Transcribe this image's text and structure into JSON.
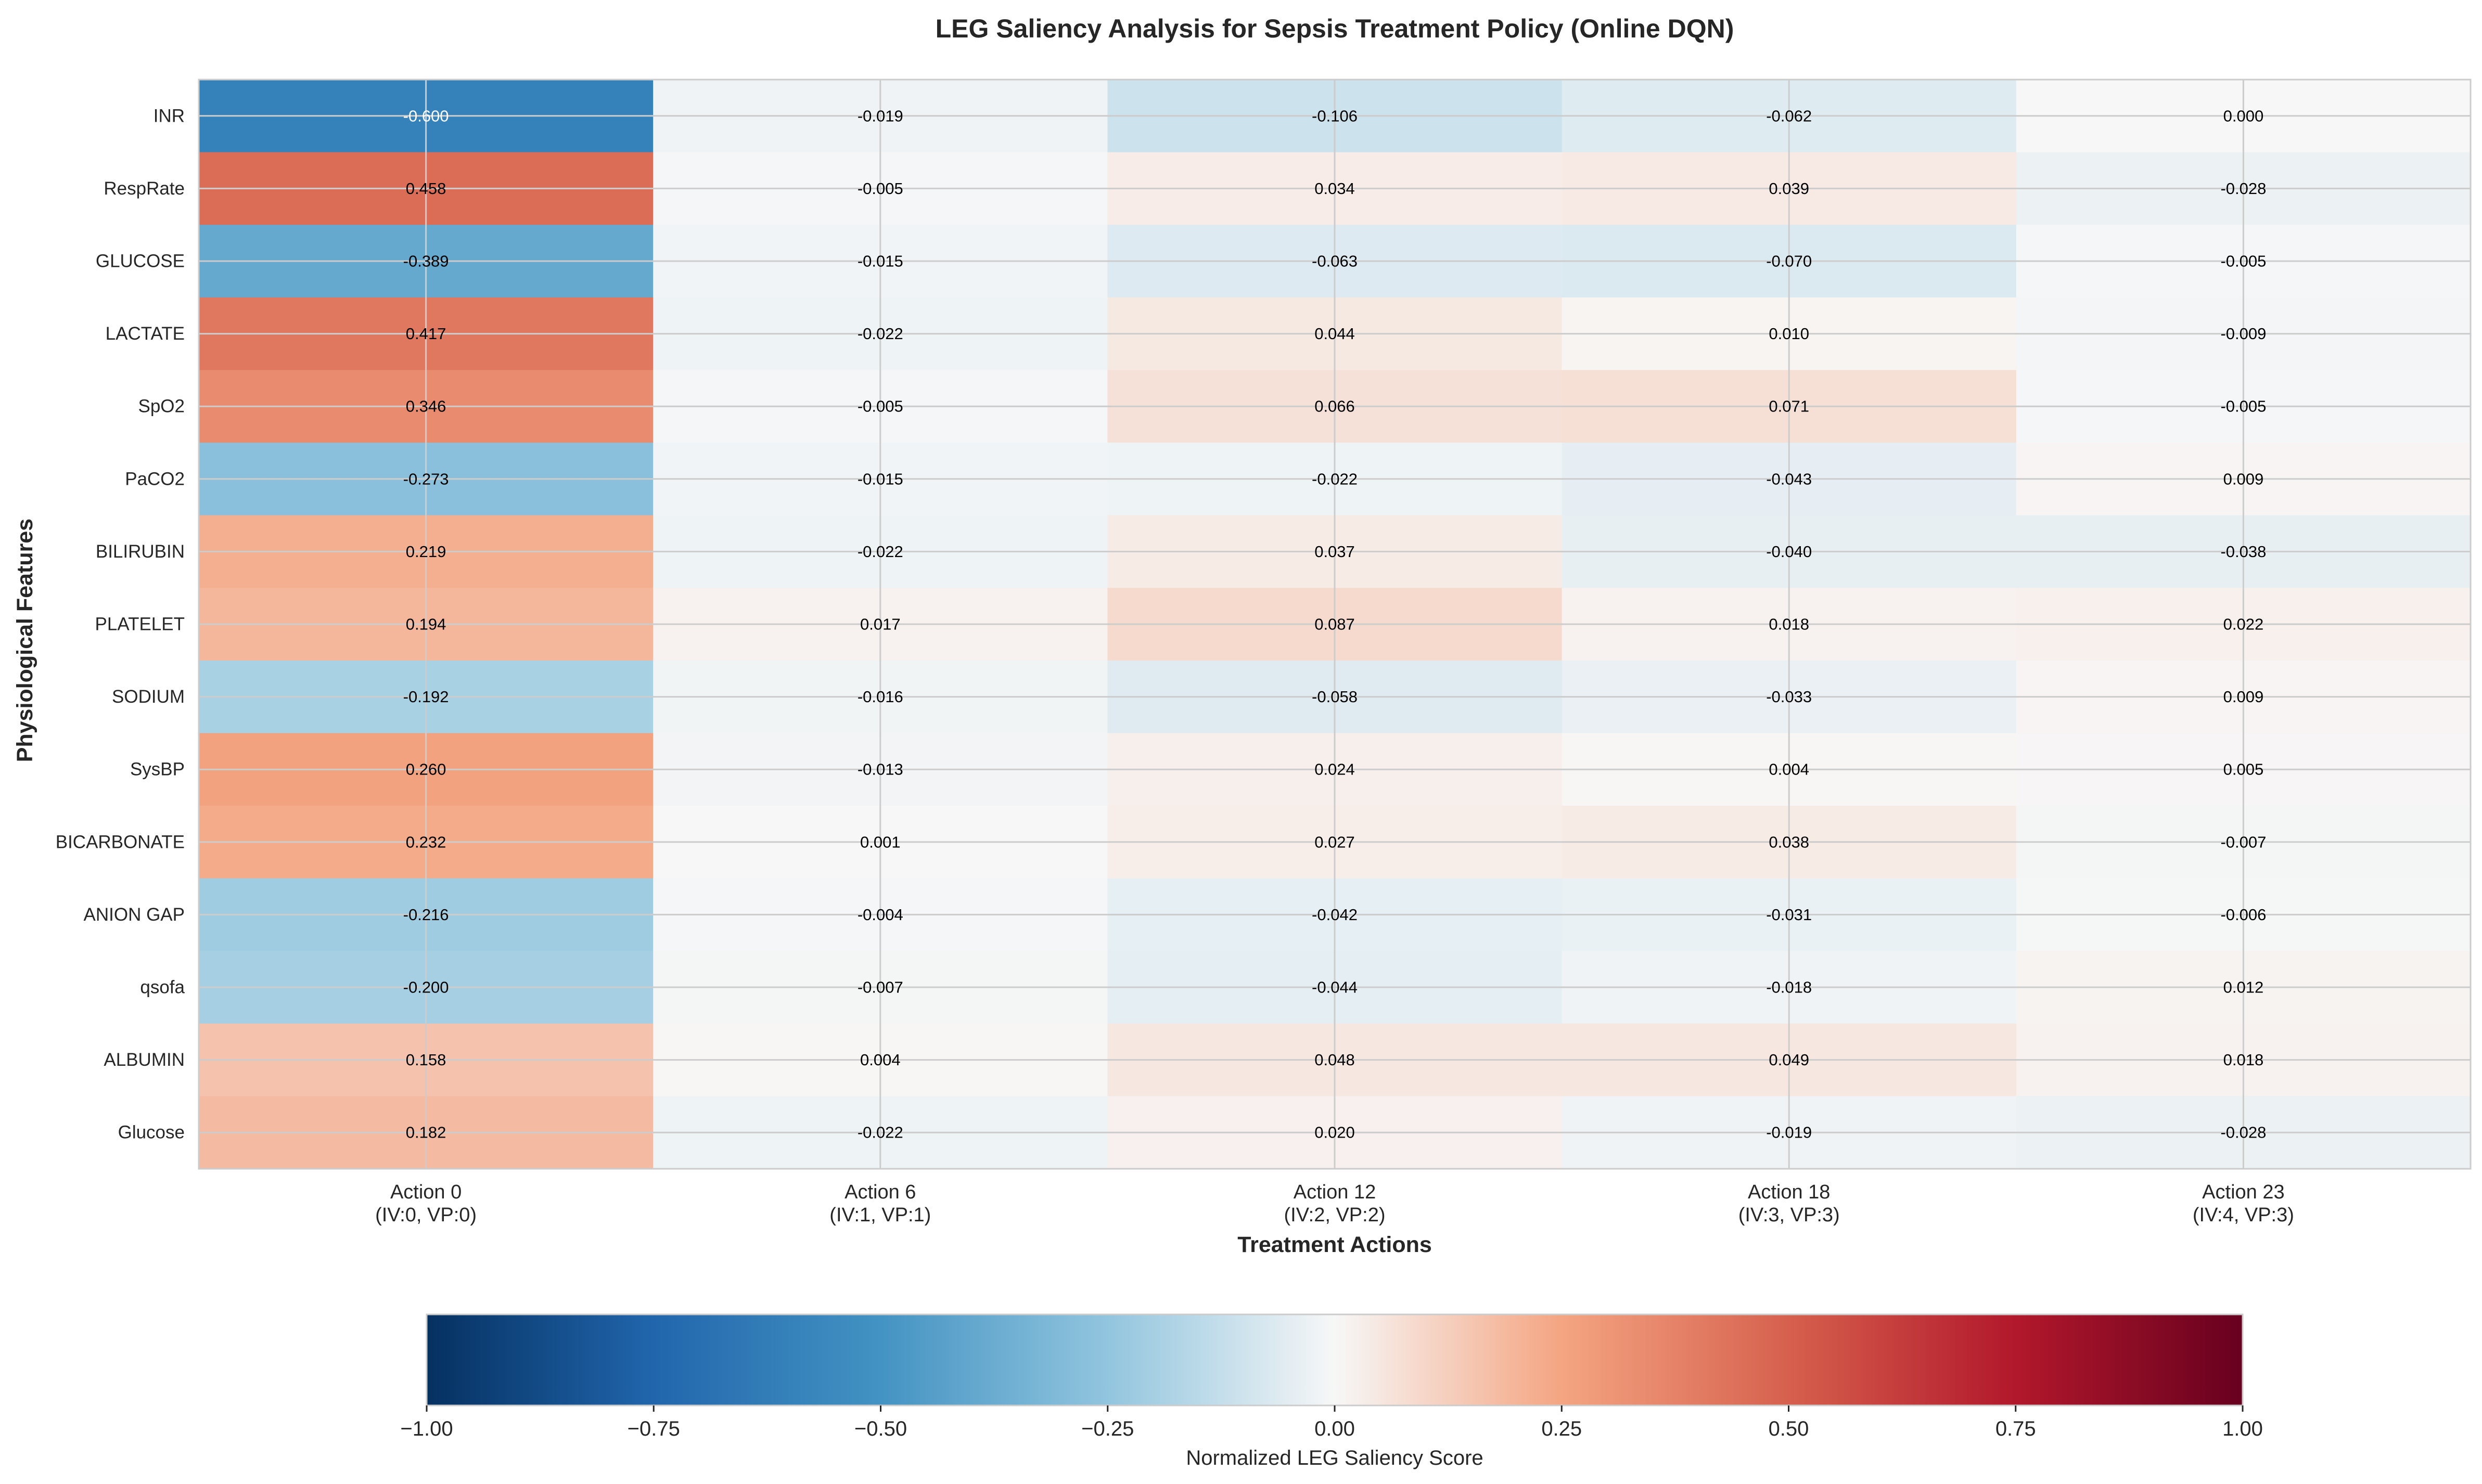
{
  "chart_data": {
    "type": "heatmap",
    "title": "LEG Saliency Analysis for Sepsis Treatment Policy (Online DQN)",
    "xlabel": "Treatment Actions",
    "ylabel": "Physiological Features",
    "colorbar_label": "Normalized LEG Saliency Score",
    "colormap": "RdBu_r",
    "vmin": -1.0,
    "vmax": 1.0,
    "colorbar_ticks": [
      "−1.00",
      "−0.75",
      "−0.50",
      "−0.25",
      "0.00",
      "0.25",
      "0.50",
      "0.75",
      "1.00"
    ],
    "colorbar_tick_values": [
      -1.0,
      -0.75,
      -0.5,
      -0.25,
      0.0,
      0.25,
      0.5,
      0.75,
      1.0
    ],
    "grid": true,
    "columns": [
      {
        "line1": "Action 0",
        "line2": "(IV:0, VP:0)"
      },
      {
        "line1": "Action 6",
        "line2": "(IV:1, VP:1)"
      },
      {
        "line1": "Action 12",
        "line2": "(IV:2, VP:2)"
      },
      {
        "line1": "Action 18",
        "line2": "(IV:3, VP:3)"
      },
      {
        "line1": "Action 23",
        "line2": "(IV:4, VP:3)"
      }
    ],
    "rows": [
      "INR",
      "RespRate",
      "GLUCOSE",
      "LACTATE",
      "SpO2",
      "PaCO2",
      "BILIRUBIN",
      "PLATELET",
      "SODIUM",
      "SysBP",
      "BICARBONATE",
      "ANION GAP",
      "qsofa",
      "ALBUMIN",
      "Glucose"
    ],
    "values": [
      [
        -0.6,
        -0.019,
        -0.106,
        -0.062,
        0.0
      ],
      [
        0.458,
        -0.005,
        0.034,
        0.039,
        -0.028
      ],
      [
        -0.389,
        -0.015,
        -0.063,
        -0.07,
        -0.005
      ],
      [
        0.417,
        -0.022,
        0.044,
        0.01,
        -0.009
      ],
      [
        0.346,
        -0.005,
        0.066,
        0.071,
        -0.005
      ],
      [
        -0.273,
        -0.015,
        -0.022,
        -0.043,
        0.009
      ],
      [
        0.219,
        -0.022,
        0.037,
        -0.04,
        -0.038
      ],
      [
        0.194,
        0.017,
        0.087,
        0.018,
        0.022
      ],
      [
        -0.192,
        -0.016,
        -0.058,
        -0.033,
        0.009
      ],
      [
        0.26,
        -0.013,
        0.024,
        0.004,
        0.005
      ],
      [
        0.232,
        0.001,
        0.027,
        0.038,
        -0.007
      ],
      [
        -0.216,
        -0.004,
        -0.042,
        -0.031,
        -0.006
      ],
      [
        -0.2,
        -0.007,
        -0.044,
        -0.018,
        0.012
      ],
      [
        0.158,
        0.004,
        0.048,
        0.049,
        0.018
      ],
      [
        0.182,
        -0.022,
        0.02,
        -0.019,
        -0.028
      ]
    ],
    "value_labels": [
      [
        "-0.600",
        "-0.019",
        "-0.106",
        "-0.062",
        "0.000"
      ],
      [
        "0.458",
        "-0.005",
        "0.034",
        "0.039",
        "-0.028"
      ],
      [
        "-0.389",
        "-0.015",
        "-0.063",
        "-0.070",
        "-0.005"
      ],
      [
        "0.417",
        "-0.022",
        "0.044",
        "0.010",
        "-0.009"
      ],
      [
        "0.346",
        "-0.005",
        "0.066",
        "0.071",
        "-0.005"
      ],
      [
        "-0.273",
        "-0.015",
        "-0.022",
        "-0.043",
        "0.009"
      ],
      [
        "0.219",
        "-0.022",
        "0.037",
        "-0.040",
        "-0.038"
      ],
      [
        "0.194",
        "0.017",
        "0.087",
        "0.018",
        "0.022"
      ],
      [
        "-0.192",
        "-0.016",
        "-0.058",
        "-0.033",
        "0.009"
      ],
      [
        "0.260",
        "-0.013",
        "0.024",
        "0.004",
        "0.005"
      ],
      [
        "0.232",
        "0.001",
        "0.027",
        "0.038",
        "-0.007"
      ],
      [
        "-0.216",
        "-0.004",
        "-0.042",
        "-0.031",
        "-0.006"
      ],
      [
        "-0.200",
        "-0.007",
        "-0.044",
        "-0.018",
        "0.012"
      ],
      [
        "0.158",
        "0.004",
        "0.048",
        "0.049",
        "0.018"
      ],
      [
        "0.182",
        "-0.022",
        "0.020",
        "-0.019",
        "-0.028"
      ]
    ]
  }
}
